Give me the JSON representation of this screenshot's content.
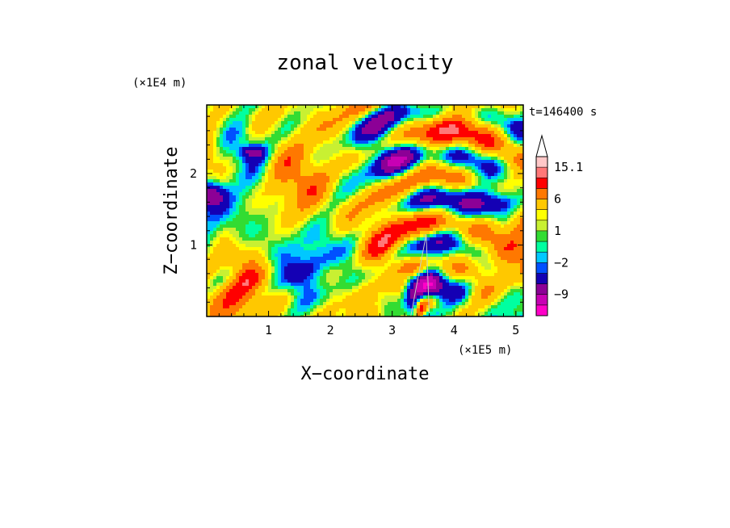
{
  "chart_data": {
    "type": "heatmap",
    "title": "zonal velocity",
    "xlabel": "X−coordinate",
    "ylabel": "Z−coordinate",
    "x_unit": "(×1E5 m)",
    "y_unit": "(×1E4 m)",
    "time_label": "t=146400 s",
    "xlim": [
      0,
      5.12
    ],
    "ylim": [
      0,
      2.96
    ],
    "x_ticks": [
      1,
      2,
      3,
      4,
      5
    ],
    "y_ticks": [
      1,
      2
    ],
    "colorbar": {
      "levels": [
        -15,
        -12,
        -9,
        -6,
        -3,
        -2,
        -1,
        0,
        1,
        2,
        3,
        6,
        9,
        12,
        15.1
      ],
      "labeled_values": [
        "15.1",
        "6",
        "1",
        "−2",
        "−9"
      ],
      "colors": [
        "#ff00c8",
        "#c800b4",
        "#8c0096",
        "#1400b4",
        "#0050ff",
        "#00c8ff",
        "#00ffa0",
        "#32dc32",
        "#c8f032",
        "#ffff00",
        "#ffc800",
        "#ff7800",
        "#ff0000",
        "#ff7878",
        "#ffc8c8"
      ],
      "extend": "max"
    },
    "grid": false,
    "legend": "colorbar-right"
  },
  "colors": {
    "background": "#ffffff",
    "frame": "#000000"
  }
}
